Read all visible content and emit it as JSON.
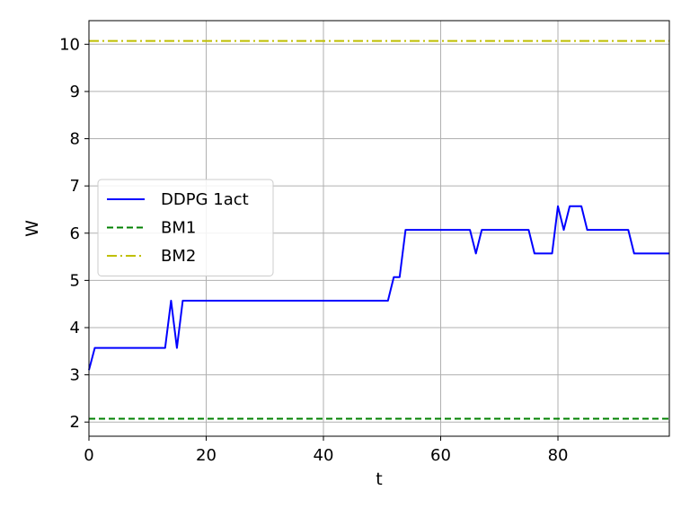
{
  "chart_data": {
    "type": "line",
    "title": "",
    "xlabel": "t",
    "ylabel": "W",
    "xlim": [
      0,
      99
    ],
    "ylim": [
      1.7,
      10.5
    ],
    "xticks": [
      0,
      20,
      40,
      60,
      80
    ],
    "yticks": [
      2,
      3,
      4,
      5,
      6,
      7,
      8,
      9,
      10
    ],
    "grid": true,
    "legend_position": "center-left",
    "series": [
      {
        "name": "DDPG 1act",
        "color": "#0000ff",
        "style": "solid",
        "x": [
          0,
          1,
          13,
          14,
          15,
          16,
          51,
          52,
          53,
          54,
          65,
          66,
          67,
          75,
          76,
          79,
          80,
          81,
          82,
          84,
          85,
          92,
          93,
          99
        ],
        "y": [
          3.1,
          3.57,
          3.57,
          4.57,
          3.57,
          4.57,
          4.57,
          5.07,
          5.07,
          6.07,
          6.07,
          5.57,
          6.07,
          6.07,
          5.57,
          5.57,
          6.57,
          6.07,
          6.57,
          6.57,
          6.07,
          6.07,
          5.57,
          5.57
        ]
      },
      {
        "name": "BM1",
        "color": "#008000",
        "style": "dashed",
        "x": [
          0,
          99
        ],
        "y": [
          2.07,
          2.07
        ]
      },
      {
        "name": "BM2",
        "color": "#bfbf00",
        "style": "dashdot",
        "x": [
          0,
          99
        ],
        "y": [
          10.07,
          10.07
        ]
      }
    ]
  }
}
